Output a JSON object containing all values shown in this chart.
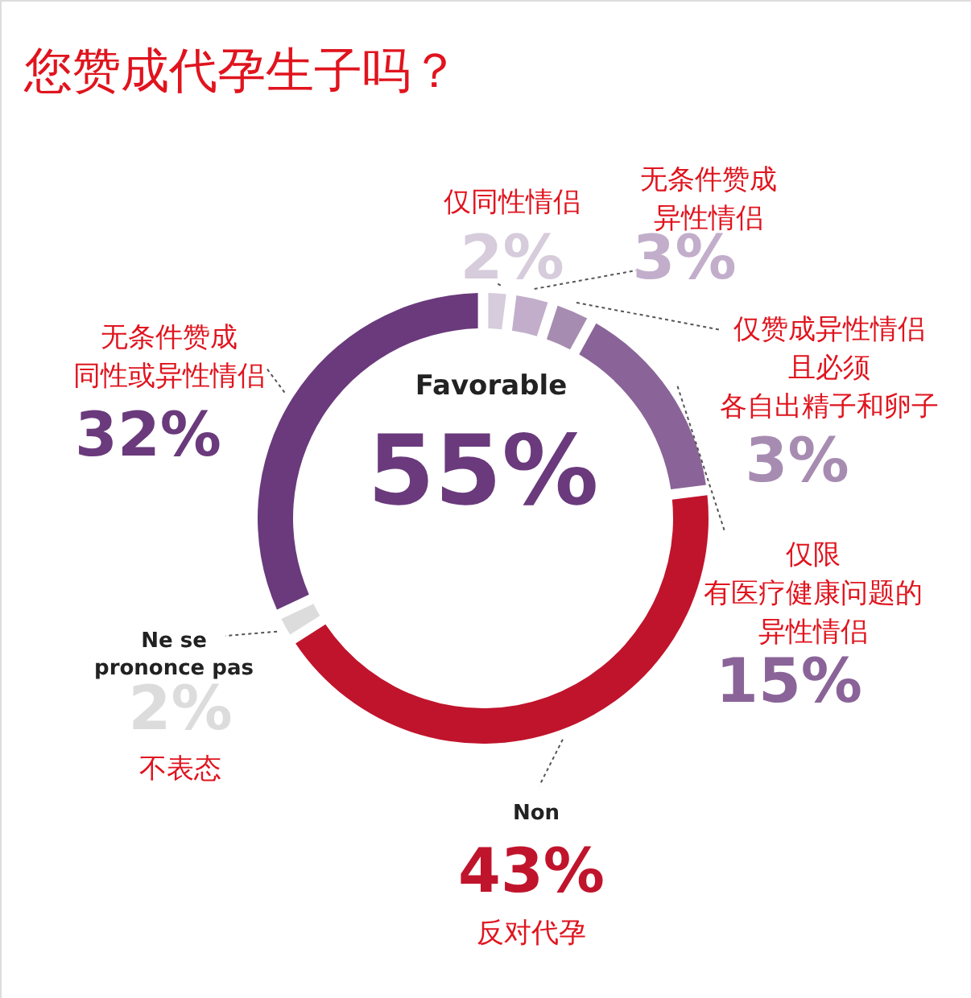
{
  "chart_data": {
    "type": "donut",
    "title": "您赞成代孕生子吗？",
    "categories": [
      "仅同性情侣",
      "无条件赞成异性情侣",
      "仅赞成异性情侣且必须各自出精子和卵子",
      "仅限有医疗健康问题的异性情侣",
      "反对代孕",
      "不表态",
      "无条件赞成同性或异性情侣"
    ],
    "values": [
      2,
      3,
      3,
      15,
      43,
      2,
      32
    ],
    "colors": [
      "#d6ccdb",
      "#c2aecb",
      "#a78cb2",
      "#8a6498",
      "#c0142c",
      "#dcdcdc",
      "#6a3a7c"
    ],
    "value_labels": [
      "2%",
      "3%",
      "3%",
      "15%",
      "43%",
      "2%",
      "32%"
    ],
    "annotations": [
      "Favorable",
      "55%",
      "Non",
      "Ne se\nprononce pas"
    ]
  }
}
